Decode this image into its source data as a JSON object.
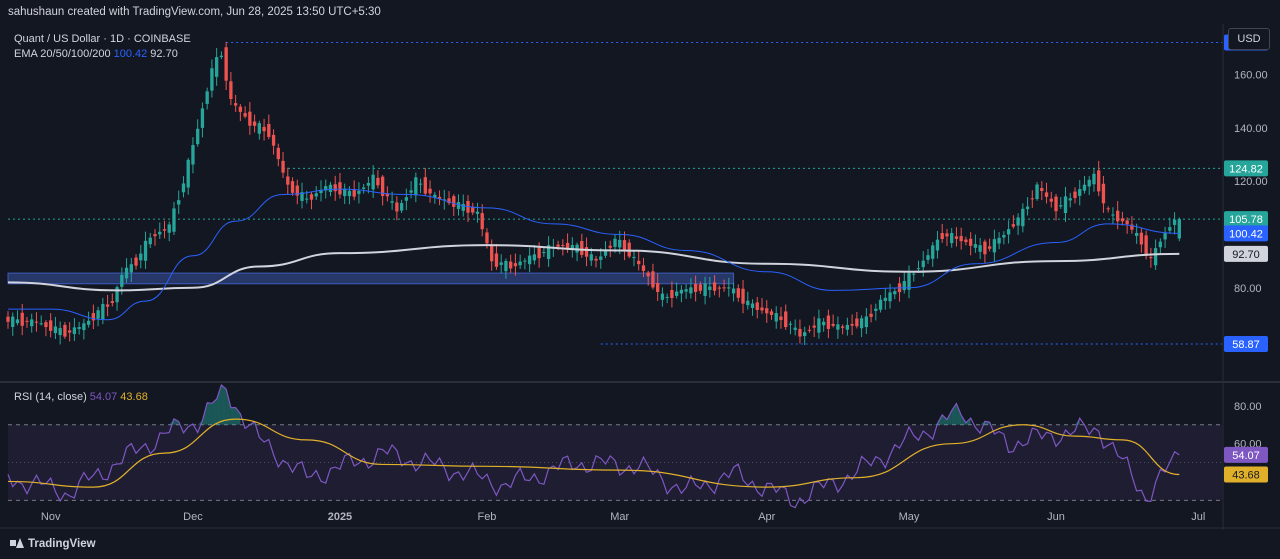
{
  "header": {
    "credit": "sahushaun created with TradingView.com, Jun 28, 2025 13:50 UTC+5:30"
  },
  "legend": {
    "symbol": "Quant / US Dollar · 1D · COINBASE",
    "ema_label": "EMA 20/50/100/200",
    "ema_val1": "100.42",
    "ema_val2": "92.70"
  },
  "rsi_legend": {
    "label": "RSI (14, close)",
    "val1": "54.07",
    "val2": "43.68"
  },
  "currency_button": "USD",
  "footer": {
    "logo_text": "TradingView"
  },
  "colors": {
    "up": "#26a69a",
    "down": "#ef5350",
    "ema_blue": "#2962ff",
    "ema_white": "#d1d4dc",
    "rsi": "#7e57c2",
    "rsi_ma": "#e0b02b",
    "zone": "#2a3d74"
  },
  "chart_data": [
    {
      "type": "candlestick",
      "title": "Quant / US Dollar · 1D · COINBASE",
      "x_ticks": [
        "Nov",
        "Dec",
        "2025",
        "Feb",
        "Mar",
        "Apr",
        "May",
        "Jun",
        "Jul"
      ],
      "y_ticks": [
        "160.00",
        "140.00",
        "120.00",
        "80.00"
      ],
      "ylim": [
        48,
        176
      ],
      "xlim": [
        "2024-10-23",
        "2025-07-06"
      ],
      "price_labels": [
        {
          "text": "172.06",
          "value": 172.06,
          "style": "blue-dotted"
        },
        {
          "text": "124.82",
          "value": 124.82,
          "style": "green-dotted"
        },
        {
          "text": "105.78",
          "value": 105.78,
          "style": "green-dotted"
        },
        {
          "text": "100.42",
          "value": 100.42,
          "style": "ema-blue"
        },
        {
          "text": "92.70",
          "value": 92.7,
          "style": "ema-white"
        },
        {
          "text": "58.87",
          "value": 58.87,
          "style": "blue-dotted"
        }
      ],
      "zone": {
        "from_date": "2024-10-23",
        "to_date": "2025-03-25",
        "low": 81.5,
        "high": 85.5
      },
      "candles_close": [
        {
          "date": "2024-10-23",
          "close": 68
        },
        {
          "date": "2024-10-30",
          "close": 67
        },
        {
          "date": "2024-11-05",
          "close": 63
        },
        {
          "date": "2024-11-09",
          "close": 66
        },
        {
          "date": "2024-11-12",
          "close": 71
        },
        {
          "date": "2024-11-15",
          "close": 75
        },
        {
          "date": "2024-11-17",
          "close": 85
        },
        {
          "date": "2024-11-20",
          "close": 90
        },
        {
          "date": "2024-11-23",
          "close": 99
        },
        {
          "date": "2024-11-27",
          "close": 103
        },
        {
          "date": "2024-11-30",
          "close": 120
        },
        {
          "date": "2024-12-03",
          "close": 140
        },
        {
          "date": "2024-12-06",
          "close": 162
        },
        {
          "date": "2024-12-08",
          "close": 168
        },
        {
          "date": "2024-12-10",
          "close": 150
        },
        {
          "date": "2024-12-14",
          "close": 142
        },
        {
          "date": "2024-12-18",
          "close": 138
        },
        {
          "date": "2024-12-22",
          "close": 118
        },
        {
          "date": "2024-12-26",
          "close": 113
        },
        {
          "date": "2024-12-30",
          "close": 118
        },
        {
          "date": "2025-01-05",
          "close": 115
        },
        {
          "date": "2025-01-09",
          "close": 121
        },
        {
          "date": "2025-01-14",
          "close": 109
        },
        {
          "date": "2025-01-18",
          "close": 120
        },
        {
          "date": "2025-01-22",
          "close": 114
        },
        {
          "date": "2025-01-27",
          "close": 111
        },
        {
          "date": "2025-01-31",
          "close": 108
        },
        {
          "date": "2025-02-03",
          "close": 90
        },
        {
          "date": "2025-02-07",
          "close": 88
        },
        {
          "date": "2025-02-12",
          "close": 92
        },
        {
          "date": "2025-02-17",
          "close": 96
        },
        {
          "date": "2025-02-21",
          "close": 95
        },
        {
          "date": "2025-02-25",
          "close": 90
        },
        {
          "date": "2025-03-01",
          "close": 98
        },
        {
          "date": "2025-03-04",
          "close": 93
        },
        {
          "date": "2025-03-08",
          "close": 84
        },
        {
          "date": "2025-03-11",
          "close": 76
        },
        {
          "date": "2025-03-15",
          "close": 79
        },
        {
          "date": "2025-03-20",
          "close": 80
        },
        {
          "date": "2025-03-25",
          "close": 80
        },
        {
          "date": "2025-03-29",
          "close": 74
        },
        {
          "date": "2025-04-03",
          "close": 70
        },
        {
          "date": "2025-04-07",
          "close": 66
        },
        {
          "date": "2025-04-09",
          "close": 62
        },
        {
          "date": "2025-04-13",
          "close": 67
        },
        {
          "date": "2025-04-18",
          "close": 65
        },
        {
          "date": "2025-04-23",
          "close": 68
        },
        {
          "date": "2025-04-26",
          "close": 75
        },
        {
          "date": "2025-04-30",
          "close": 80
        },
        {
          "date": "2025-05-05",
          "close": 90
        },
        {
          "date": "2025-05-09",
          "close": 100
        },
        {
          "date": "2025-05-13",
          "close": 98
        },
        {
          "date": "2025-05-18",
          "close": 94
        },
        {
          "date": "2025-05-22",
          "close": 100
        },
        {
          "date": "2025-05-26",
          "close": 108
        },
        {
          "date": "2025-05-29",
          "close": 118
        },
        {
          "date": "2025-06-02",
          "close": 110
        },
        {
          "date": "2025-06-06",
          "close": 115
        },
        {
          "date": "2025-06-10",
          "close": 122
        },
        {
          "date": "2025-06-13",
          "close": 108
        },
        {
          "date": "2025-06-17",
          "close": 104
        },
        {
          "date": "2025-06-20",
          "close": 97
        },
        {
          "date": "2025-06-22",
          "close": 90
        },
        {
          "date": "2025-06-24",
          "close": 98
        },
        {
          "date": "2025-06-27",
          "close": 105.78
        }
      ],
      "ema_blue": [
        {
          "date": "2024-10-23",
          "value": 72
        },
        {
          "date": "2024-11-01",
          "value": 72
        },
        {
          "date": "2024-11-13",
          "value": 68
        },
        {
          "date": "2024-11-21",
          "value": 75
        },
        {
          "date": "2024-12-01",
          "value": 92
        },
        {
          "date": "2024-12-10",
          "value": 105
        },
        {
          "date": "2024-12-20",
          "value": 115
        },
        {
          "date": "2025-01-01",
          "value": 117
        },
        {
          "date": "2025-01-15",
          "value": 115
        },
        {
          "date": "2025-02-01",
          "value": 110
        },
        {
          "date": "2025-02-15",
          "value": 104
        },
        {
          "date": "2025-03-01",
          "value": 100
        },
        {
          "date": "2025-03-15",
          "value": 94
        },
        {
          "date": "2025-04-01",
          "value": 86
        },
        {
          "date": "2025-04-15",
          "value": 79
        },
        {
          "date": "2025-05-01",
          "value": 80
        },
        {
          "date": "2025-05-15",
          "value": 89
        },
        {
          "date": "2025-06-01",
          "value": 97
        },
        {
          "date": "2025-06-12",
          "value": 104
        },
        {
          "date": "2025-06-27",
          "value": 100.42
        }
      ],
      "ema_white": [
        {
          "date": "2024-10-23",
          "value": 82
        },
        {
          "date": "2024-11-15",
          "value": 79
        },
        {
          "date": "2024-12-01",
          "value": 80
        },
        {
          "date": "2024-12-15",
          "value": 88
        },
        {
          "date": "2025-01-01",
          "value": 93
        },
        {
          "date": "2025-02-01",
          "value": 96
        },
        {
          "date": "2025-03-01",
          "value": 94
        },
        {
          "date": "2025-04-01",
          "value": 89
        },
        {
          "date": "2025-05-01",
          "value": 86
        },
        {
          "date": "2025-06-01",
          "value": 90
        },
        {
          "date": "2025-06-27",
          "value": 92.7
        }
      ]
    },
    {
      "type": "line",
      "title": "RSI (14, close)",
      "y_ticks": [
        "80.00",
        "60.00"
      ],
      "ylim": [
        18,
        90
      ],
      "bands": [
        30,
        70
      ],
      "price_labels": [
        {
          "text": "54.07",
          "value": 54.07,
          "style": "rsi"
        },
        {
          "text": "43.68",
          "value": 43.68,
          "style": "rsi-ma"
        }
      ],
      "rsi": [
        {
          "date": "2024-10-23",
          "value": 42
        },
        {
          "date": "2024-11-05",
          "value": 34
        },
        {
          "date": "2024-11-15",
          "value": 50
        },
        {
          "date": "2024-11-25",
          "value": 65
        },
        {
          "date": "2024-12-02",
          "value": 72
        },
        {
          "date": "2024-12-08",
          "value": 88
        },
        {
          "date": "2024-12-15",
          "value": 62
        },
        {
          "date": "2024-12-25",
          "value": 42
        },
        {
          "date": "2025-01-10",
          "value": 55
        },
        {
          "date": "2025-01-25",
          "value": 46
        },
        {
          "date": "2025-02-05",
          "value": 38
        },
        {
          "date": "2025-02-20",
          "value": 50
        },
        {
          "date": "2025-03-05",
          "value": 48
        },
        {
          "date": "2025-03-15",
          "value": 35
        },
        {
          "date": "2025-03-25",
          "value": 44
        },
        {
          "date": "2025-04-07",
          "value": 30
        },
        {
          "date": "2025-04-20",
          "value": 45
        },
        {
          "date": "2025-05-01",
          "value": 62
        },
        {
          "date": "2025-05-12",
          "value": 77
        },
        {
          "date": "2025-05-22",
          "value": 60
        },
        {
          "date": "2025-06-01",
          "value": 65
        },
        {
          "date": "2025-06-10",
          "value": 68
        },
        {
          "date": "2025-06-20",
          "value": 32
        },
        {
          "date": "2025-06-27",
          "value": 54.07
        }
      ],
      "rsi_ma": [
        {
          "date": "2024-10-23",
          "value": 40
        },
        {
          "date": "2024-11-10",
          "value": 37
        },
        {
          "date": "2024-11-25",
          "value": 55
        },
        {
          "date": "2024-12-10",
          "value": 73
        },
        {
          "date": "2024-12-25",
          "value": 62
        },
        {
          "date": "2025-01-10",
          "value": 49
        },
        {
          "date": "2025-02-01",
          "value": 48
        },
        {
          "date": "2025-03-01",
          "value": 46
        },
        {
          "date": "2025-04-01",
          "value": 37
        },
        {
          "date": "2025-04-20",
          "value": 42
        },
        {
          "date": "2025-05-10",
          "value": 60
        },
        {
          "date": "2025-05-25",
          "value": 70
        },
        {
          "date": "2025-06-05",
          "value": 64
        },
        {
          "date": "2025-06-15",
          "value": 62
        },
        {
          "date": "2025-06-27",
          "value": 43.68
        }
      ]
    }
  ]
}
